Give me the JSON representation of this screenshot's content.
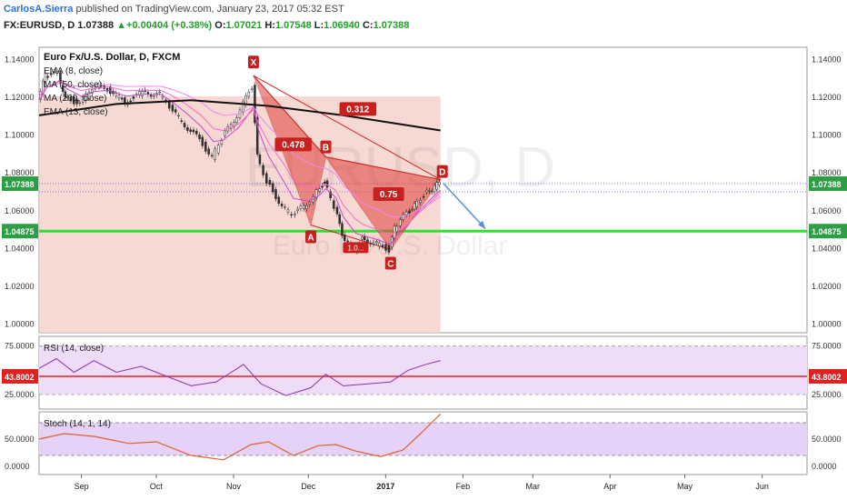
{
  "header": {
    "author": "CarlosA.Sierra",
    "published": "published on TradingView.com, January 23, 2017 05:32 EST",
    "symbol": "FX:EURUSD, D",
    "last": "1.07388",
    "change": "+0.00404 (+0.38%)",
    "o_label": "O:",
    "o_val": "1.07021",
    "h_label": "H:",
    "h_val": "1.07548",
    "l_label": "L:",
    "l_val": "1.06940",
    "c_label": "C:",
    "c_val": "1.07388"
  },
  "main": {
    "title": "Euro Fx/U.S. Dollar, D, FXCM",
    "indicators": [
      "EMA (8, close)",
      "MA (50, close)",
      "MA (200, close)",
      "EMA (13, close)"
    ],
    "watermark_symbol": "EURUSD, D",
    "watermark_name": "Euro Fx/U.S. Dollar"
  },
  "colors": {
    "pattern_fill": "#e0403a",
    "pattern_line": "#cc2222",
    "support_line": "#33dd33",
    "price_badge": "#2e9e44",
    "rsi_level": "#dd2222",
    "ma200": "#111111",
    "ema": "#cc44cc",
    "projection": "#5a8fd6"
  },
  "chart_data": [
    {
      "type": "candlestick",
      "panel": "price",
      "x_labels": [
        "Sep",
        "Oct",
        "Nov",
        "Dec",
        "2017",
        "Feb",
        "Mar",
        "Apr",
        "May",
        "Jun"
      ],
      "y_ticks": [
        "1.14000",
        "1.12000",
        "1.10000",
        "1.08000",
        "1.06000",
        "1.04875",
        "1.04000",
        "1.02000",
        "1.00000"
      ],
      "ylim": [
        0.995,
        1.146
      ],
      "last_price": 1.07388,
      "support_level": 1.04875,
      "close_series": [
        {
          "date": "2016-08-15",
          "value": 1.118
        },
        {
          "date": "2016-08-18",
          "value": 1.131
        },
        {
          "date": "2016-08-23",
          "value": 1.132
        },
        {
          "date": "2016-08-26",
          "value": 1.12
        },
        {
          "date": "2016-09-01",
          "value": 1.116
        },
        {
          "date": "2016-09-06",
          "value": 1.125
        },
        {
          "date": "2016-09-12",
          "value": 1.124
        },
        {
          "date": "2016-09-19",
          "value": 1.117
        },
        {
          "date": "2016-09-26",
          "value": 1.122
        },
        {
          "date": "2016-10-03",
          "value": 1.121
        },
        {
          "date": "2016-10-07",
          "value": 1.114
        },
        {
          "date": "2016-10-13",
          "value": 1.105
        },
        {
          "date": "2016-10-19",
          "value": 1.097
        },
        {
          "date": "2016-10-24",
          "value": 1.088
        },
        {
          "date": "2016-10-28",
          "value": 1.098
        },
        {
          "date": "2016-11-03",
          "value": 1.11
        },
        {
          "date": "2016-11-09",
          "value": 1.125
        },
        {
          "date": "2016-11-11",
          "value": 1.09
        },
        {
          "date": "2016-11-15",
          "value": 1.075
        },
        {
          "date": "2016-11-21",
          "value": 1.062
        },
        {
          "date": "2016-11-25",
          "value": 1.057
        },
        {
          "date": "2016-12-01",
          "value": 1.063
        },
        {
          "date": "2016-12-05",
          "value": 1.07
        },
        {
          "date": "2016-12-08",
          "value": 1.075
        },
        {
          "date": "2016-12-12",
          "value": 1.062
        },
        {
          "date": "2016-12-15",
          "value": 1.046
        },
        {
          "date": "2016-12-20",
          "value": 1.039
        },
        {
          "date": "2016-12-23",
          "value": 1.045
        },
        {
          "date": "2016-12-29",
          "value": 1.042
        },
        {
          "date": "2017-01-03",
          "value": 1.039
        },
        {
          "date": "2017-01-05",
          "value": 1.05
        },
        {
          "date": "2017-01-10",
          "value": 1.058
        },
        {
          "date": "2017-01-13",
          "value": 1.063
        },
        {
          "date": "2017-01-17",
          "value": 1.068
        },
        {
          "date": "2017-01-20",
          "value": 1.071
        },
        {
          "date": "2017-01-23",
          "value": 1.074
        }
      ],
      "ma200_series": [
        {
          "date": "2016-08-15",
          "value": 1.11
        },
        {
          "date": "2016-09-15",
          "value": 1.116
        },
        {
          "date": "2016-10-15",
          "value": 1.118
        },
        {
          "date": "2016-11-15",
          "value": 1.115
        },
        {
          "date": "2016-12-15",
          "value": 1.11
        },
        {
          "date": "2017-01-23",
          "value": 1.102
        }
      ],
      "harmonic_pattern": {
        "points": [
          {
            "label": "X",
            "date": "2016-11-09",
            "value": 1.131
          },
          {
            "label": "A",
            "date": "2016-12-02",
            "value": 1.052
          },
          {
            "label": "B",
            "date": "2016-12-08",
            "value": 1.088
          },
          {
            "label": "C",
            "date": "2017-01-03",
            "value": 1.039
          },
          {
            "label": "D",
            "date": "2017-01-23",
            "value": 1.076
          }
        ],
        "ratios": [
          "0.478",
          "0.312",
          "0.75"
        ],
        "small_label": "1.0..."
      }
    },
    {
      "type": "line",
      "panel": "rsi",
      "title": "RSI (14, close)",
      "y_ticks": [
        "75.0000",
        "43.8002",
        "25.0000"
      ],
      "ylim": [
        10,
        85
      ],
      "level": 43.8002,
      "series": [
        {
          "date": "2016-08-15",
          "value": 52
        },
        {
          "date": "2016-08-22",
          "value": 62
        },
        {
          "date": "2016-08-29",
          "value": 48
        },
        {
          "date": "2016-09-06",
          "value": 60
        },
        {
          "date": "2016-09-15",
          "value": 48
        },
        {
          "date": "2016-09-25",
          "value": 54
        },
        {
          "date": "2016-10-05",
          "value": 44
        },
        {
          "date": "2016-10-15",
          "value": 34
        },
        {
          "date": "2016-10-25",
          "value": 38
        },
        {
          "date": "2016-11-05",
          "value": 56
        },
        {
          "date": "2016-11-12",
          "value": 36
        },
        {
          "date": "2016-11-22",
          "value": 24
        },
        {
          "date": "2016-12-02",
          "value": 32
        },
        {
          "date": "2016-12-08",
          "value": 46
        },
        {
          "date": "2016-12-15",
          "value": 34
        },
        {
          "date": "2016-12-25",
          "value": 36
        },
        {
          "date": "2017-01-03",
          "value": 38
        },
        {
          "date": "2017-01-10",
          "value": 50
        },
        {
          "date": "2017-01-17",
          "value": 56
        },
        {
          "date": "2017-01-23",
          "value": 60
        }
      ]
    },
    {
      "type": "line",
      "panel": "stoch",
      "title": "Stoch (14, 1, 14)",
      "y_ticks": [
        "50.0000",
        "0.0000"
      ],
      "ylim": [
        -15,
        100
      ],
      "band": [
        20,
        80
      ],
      "series": [
        {
          "date": "2016-08-15",
          "value": 50
        },
        {
          "date": "2016-08-25",
          "value": 60
        },
        {
          "date": "2016-09-06",
          "value": 55
        },
        {
          "date": "2016-09-20",
          "value": 42
        },
        {
          "date": "2016-10-01",
          "value": 45
        },
        {
          "date": "2016-10-15",
          "value": 20
        },
        {
          "date": "2016-10-28",
          "value": 12
        },
        {
          "date": "2016-11-08",
          "value": 40
        },
        {
          "date": "2016-11-15",
          "value": 45
        },
        {
          "date": "2016-11-25",
          "value": 20
        },
        {
          "date": "2016-12-05",
          "value": 38
        },
        {
          "date": "2016-12-12",
          "value": 40
        },
        {
          "date": "2016-12-20",
          "value": 28
        },
        {
          "date": "2016-12-30",
          "value": 18
        },
        {
          "date": "2017-01-08",
          "value": 30
        },
        {
          "date": "2017-01-15",
          "value": 60
        },
        {
          "date": "2017-01-23",
          "value": 96
        }
      ]
    }
  ]
}
